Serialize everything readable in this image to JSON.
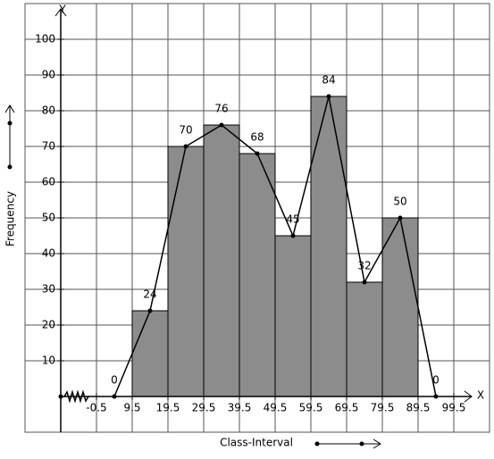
{
  "chart_data": {
    "type": "histogram",
    "x_label": "Class-Interval",
    "y_label": "Frequency",
    "x_axis_name": "X",
    "y_axis_name": "Y",
    "bins": [
      9.5,
      19.5,
      29.5,
      39.5,
      49.5,
      59.5,
      69.5,
      79.5,
      89.5
    ],
    "values": [
      24,
      70,
      76,
      68,
      45,
      84,
      32,
      50
    ],
    "color": "#8c8c8c",
    "polygon": {
      "x": [
        4.5,
        14.5,
        24.5,
        34.5,
        44.5,
        54.5,
        64.5,
        74.5,
        84.5,
        94.5
      ],
      "values": [
        0,
        24,
        70,
        76,
        68,
        45,
        84,
        32,
        50,
        0
      ],
      "color": "#000000"
    },
    "xlim": [
      -20.5,
      109.5
    ],
    "ylim": [
      -10,
      110
    ],
    "xticks": [
      -0.5,
      9.5,
      19.5,
      29.5,
      39.5,
      49.5,
      59.5,
      69.5,
      79.5,
      89.5,
      99.5
    ],
    "yticks": [
      10,
      20,
      30,
      40,
      50,
      60,
      70,
      80,
      90,
      100
    ],
    "grid": true
  }
}
